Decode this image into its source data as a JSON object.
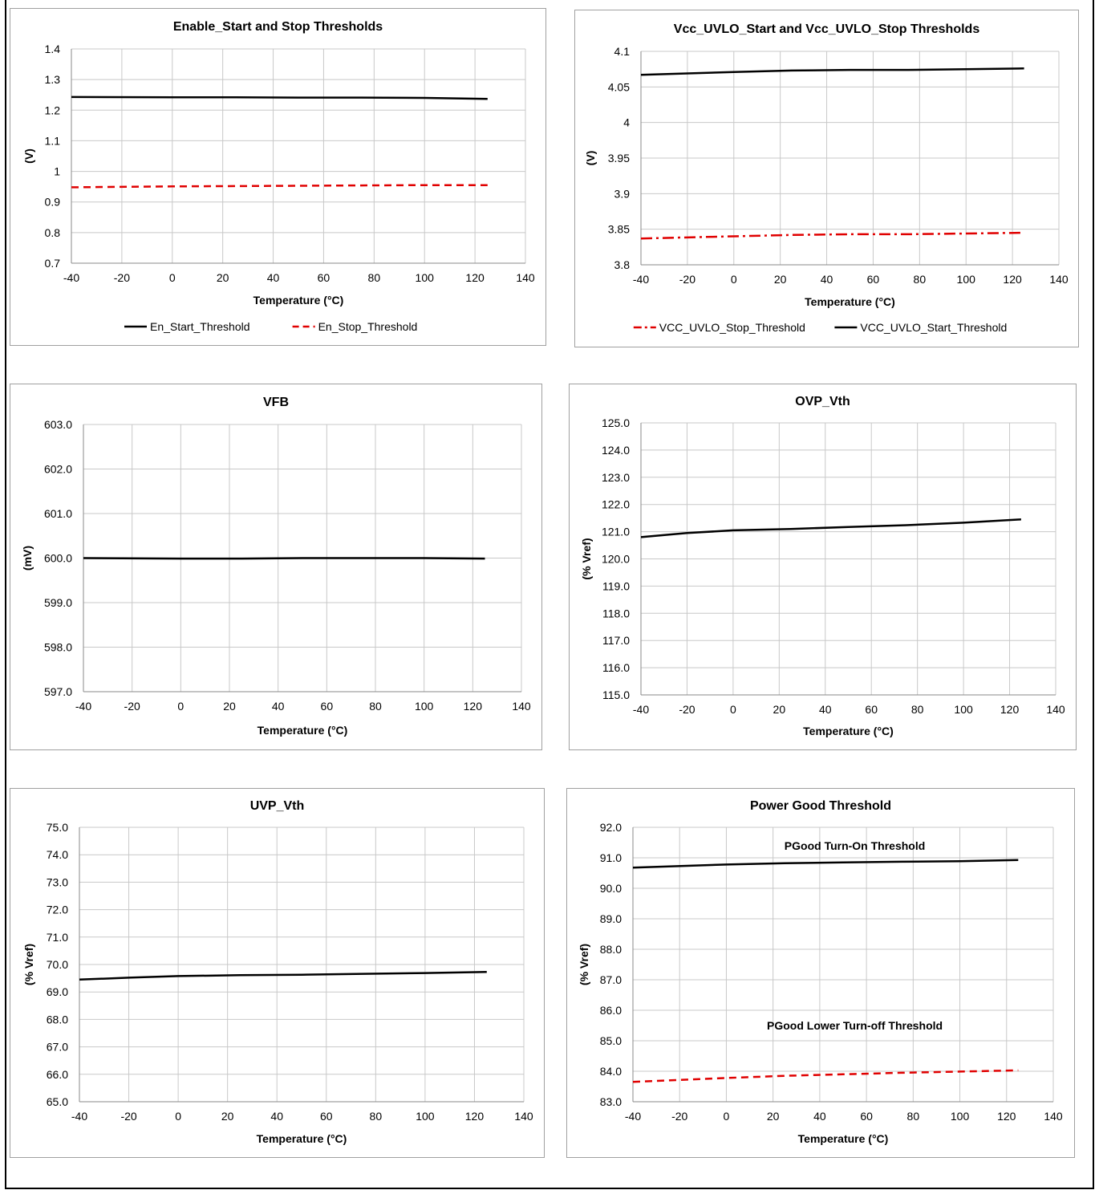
{
  "chart_data": [
    {
      "type": "line",
      "title": "Enable_Start and Stop Thresholds",
      "xlabel": "Temperature (°C)",
      "ylabel": "(V)",
      "xlim": [
        -40,
        140
      ],
      "ylim": [
        0.7,
        1.4
      ],
      "xticks": [
        "-40",
        "-20",
        "0",
        "20",
        "40",
        "60",
        "80",
        "100",
        "120",
        "140"
      ],
      "yticks": [
        "0.7",
        "0.8",
        "0.9",
        "1",
        "1.1",
        "1.2",
        "1.3",
        "1.4"
      ],
      "grid": true,
      "legend": "bottom",
      "series": [
        {
          "name": "En_Start_Threshold",
          "color": "#000000",
          "dash": "solid",
          "x": [
            -40,
            0,
            25,
            50,
            75,
            100,
            125
          ],
          "y": [
            1.243,
            1.242,
            1.242,
            1.241,
            1.241,
            1.24,
            1.237
          ]
        },
        {
          "name": "En_Stop_Threshold",
          "color": "#e00000",
          "dash": "dash",
          "x": [
            -40,
            0,
            25,
            50,
            75,
            100,
            125
          ],
          "y": [
            0.948,
            0.951,
            0.952,
            0.953,
            0.954,
            0.955,
            0.955
          ]
        }
      ]
    },
    {
      "type": "line",
      "title": "Vcc_UVLO_Start and Vcc_UVLO_Stop Thresholds",
      "xlabel": "Temperature (°C)",
      "ylabel": "(V)",
      "xlim": [
        -40,
        140
      ],
      "ylim": [
        3.8,
        4.1
      ],
      "xticks": [
        "-40",
        "-20",
        "0",
        "20",
        "40",
        "60",
        "80",
        "100",
        "120",
        "140"
      ],
      "yticks": [
        "3.8",
        "3.85",
        "3.9",
        "3.95",
        "4",
        "4.05",
        "4.1"
      ],
      "grid": true,
      "legend": "bottom",
      "series": [
        {
          "name": "VCC_UVLO_Stop_Threshold",
          "color": "#e00000",
          "dash": "dashdot",
          "x": [
            -40,
            0,
            25,
            50,
            75,
            100,
            125
          ],
          "y": [
            3.837,
            3.84,
            3.842,
            3.843,
            3.843,
            3.844,
            3.845
          ]
        },
        {
          "name": "VCC_UVLO_Start_Threshold",
          "color": "#000000",
          "dash": "solid",
          "x": [
            -40,
            0,
            25,
            50,
            75,
            100,
            125
          ],
          "y": [
            4.067,
            4.071,
            4.073,
            4.074,
            4.074,
            4.075,
            4.076
          ]
        }
      ]
    },
    {
      "type": "line",
      "title": "VFB",
      "xlabel": "Temperature (°C)",
      "ylabel": "(mV)",
      "xlim": [
        -40,
        140
      ],
      "ylim": [
        597,
        603
      ],
      "xticks": [
        "-40",
        "-20",
        "0",
        "20",
        "40",
        "60",
        "80",
        "100",
        "120",
        "140"
      ],
      "yticks": [
        "597.0",
        "598.0",
        "599.0",
        "600.0",
        "601.0",
        "602.0",
        "603.0"
      ],
      "grid": true,
      "legend": "none",
      "series": [
        {
          "name": "",
          "color": "#000000",
          "dash": "solid",
          "x": [
            -40,
            0,
            25,
            50,
            75,
            100,
            125
          ],
          "y": [
            600.0,
            599.99,
            599.99,
            600.0,
            600.0,
            600.0,
            599.99
          ]
        }
      ]
    },
    {
      "type": "line",
      "title": "OVP_Vth",
      "xlabel": "Temperature (°C)",
      "ylabel": "(% Vref)",
      "xlim": [
        -40,
        140
      ],
      "ylim": [
        115,
        125
      ],
      "xticks": [
        "-40",
        "-20",
        "0",
        "20",
        "40",
        "60",
        "80",
        "100",
        "120",
        "140"
      ],
      "yticks": [
        "115.0",
        "116.0",
        "117.0",
        "118.0",
        "119.0",
        "120.0",
        "121.0",
        "122.0",
        "123.0",
        "124.0",
        "125.0"
      ],
      "grid": true,
      "legend": "none",
      "series": [
        {
          "name": "",
          "color": "#000000",
          "dash": "solid",
          "x": [
            -40,
            -20,
            0,
            25,
            50,
            75,
            100,
            125
          ],
          "y": [
            120.8,
            120.95,
            121.05,
            121.1,
            121.17,
            121.24,
            121.33,
            121.45
          ]
        }
      ]
    },
    {
      "type": "line",
      "title": "UVP_Vth",
      "xlabel": "Temperature (°C)",
      "ylabel": "(% Vref)",
      "xlim": [
        -40,
        140
      ],
      "ylim": [
        65,
        75
      ],
      "xticks": [
        "-40",
        "-20",
        "0",
        "20",
        "40",
        "60",
        "80",
        "100",
        "120",
        "140"
      ],
      "yticks": [
        "65.0",
        "66.0",
        "67.0",
        "68.0",
        "69.0",
        "70.0",
        "71.0",
        "72.0",
        "73.0",
        "74.0",
        "75.0"
      ],
      "grid": true,
      "legend": "none",
      "series": [
        {
          "name": "",
          "color": "#000000",
          "dash": "solid",
          "x": [
            -40,
            -20,
            0,
            25,
            50,
            75,
            100,
            125
          ],
          "y": [
            69.45,
            69.52,
            69.58,
            69.61,
            69.63,
            69.66,
            69.69,
            69.73
          ]
        }
      ]
    },
    {
      "type": "line",
      "title": "Power Good Threshold",
      "xlabel": "Temperature (°C)",
      "ylabel": "(% Vref)",
      "xlim": [
        -40,
        140
      ],
      "ylim": [
        83,
        92
      ],
      "xticks": [
        "-40",
        "-20",
        "0",
        "20",
        "40",
        "60",
        "80",
        "100",
        "120",
        "140"
      ],
      "yticks": [
        "83.0",
        "84.0",
        "85.0",
        "86.0",
        "87.0",
        "88.0",
        "89.0",
        "90.0",
        "91.0",
        "92.0"
      ],
      "grid": true,
      "legend": "none",
      "annotations": [
        {
          "text": "PGood Turn-On Threshold",
          "x": 55,
          "y": 91.4
        },
        {
          "text": "PGood Lower Turn-off Threshold",
          "x": 55,
          "y": 85.5
        }
      ],
      "series": [
        {
          "name": "",
          "color": "#000000",
          "dash": "solid",
          "x": [
            -40,
            0,
            25,
            50,
            75,
            100,
            125
          ],
          "y": [
            90.68,
            90.78,
            90.82,
            90.85,
            90.87,
            90.89,
            90.93
          ]
        },
        {
          "name": "",
          "color": "#e00000",
          "dash": "dash",
          "x": [
            -40,
            0,
            25,
            50,
            75,
            100,
            125
          ],
          "y": [
            83.65,
            83.78,
            83.85,
            83.9,
            83.95,
            83.99,
            84.03
          ]
        }
      ]
    }
  ]
}
